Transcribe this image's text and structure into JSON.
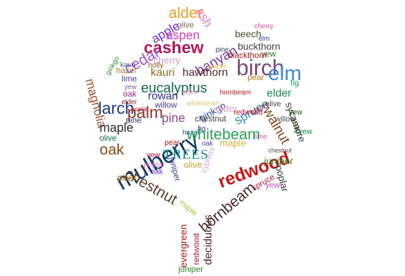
{
  "words": [
    {
      "text": "alder",
      "color": "#e8a024"
    },
    {
      "text": "ash",
      "color": "#e87ab4"
    },
    {
      "text": "apple",
      "color": "#6a2fd0"
    },
    {
      "text": "olive",
      "color": "#7a6a4a"
    },
    {
      "text": "aspen",
      "color": "#d43cc8"
    },
    {
      "text": "cherry",
      "color": "#d84fa0"
    },
    {
      "text": "beech",
      "color": "#4a4a2a"
    },
    {
      "text": "elm",
      "color": "#3a3aa0"
    },
    {
      "text": "cashew",
      "color": "#b01858"
    },
    {
      "text": "banyan",
      "color": "#6a3aa0"
    },
    {
      "text": "buckthorn",
      "color": "#4a3a3a"
    },
    {
      "text": "cedar",
      "color": "#9b59d0"
    },
    {
      "text": "cherry",
      "color": "#c8a0c8"
    },
    {
      "text": "pine",
      "color": "#3a3a6a"
    },
    {
      "text": "yew",
      "color": "#2a6a2a"
    },
    {
      "text": "blackthorn",
      "color": "#a01818"
    },
    {
      "text": "ginkgo",
      "color": "#2a8a2a"
    },
    {
      "text": "kauri",
      "color": "#4a4a8a"
    },
    {
      "text": "hazel",
      "color": "#a07a2a"
    },
    {
      "text": "juniper",
      "color": "#e8c038"
    },
    {
      "text": "holly",
      "color": "#8a5a2a"
    },
    {
      "text": "birch",
      "color": "#7a4a7a"
    },
    {
      "text": "elm",
      "color": "#3a8ad0"
    },
    {
      "text": "kauri",
      "color": "#8a6a1a"
    },
    {
      "text": "hawthorn",
      "color": "#4a2a2a"
    },
    {
      "text": "lime",
      "color": "#4a3aa0"
    },
    {
      "text": "pear",
      "color": "#b8781a"
    },
    {
      "text": "eucalyptus",
      "color": "#0f6a4a"
    },
    {
      "text": "fig",
      "color": "#2aa05a"
    },
    {
      "text": "magnolia",
      "color": "#a0522d"
    },
    {
      "text": "yew",
      "color": "#6a6ab0"
    },
    {
      "text": "oak",
      "color": "#8a2a7a"
    },
    {
      "text": "rowan",
      "color": "#2a2a8a"
    },
    {
      "text": "palm",
      "color": "#e8a0c8"
    },
    {
      "text": "hornbeam",
      "color": "#b01818"
    },
    {
      "text": "elder",
      "color": "#1a8a4a"
    },
    {
      "text": "larch",
      "color": "#1a3a8a"
    },
    {
      "text": "elder",
      "color": "#8a1a1a"
    },
    {
      "text": "willow",
      "color": "#4a3a8a"
    },
    {
      "text": "whitebeam",
      "color": "#d8c880"
    },
    {
      "text": "ginkgo",
      "color": "#2a4aa0"
    },
    {
      "text": "spruce",
      "color": "#2a8ac8"
    },
    {
      "text": "cherry",
      "color": "#a01818"
    },
    {
      "text": "olive",
      "color": "#4a4a4a"
    },
    {
      "text": "sycamore",
      "color": "#3a3a3a"
    },
    {
      "text": "palm",
      "color": "#8a3a2a"
    },
    {
      "text": "poplar",
      "color": "#b01838"
    },
    {
      "text": "elder",
      "color": "#e8a0c8"
    },
    {
      "text": "yew",
      "color": "#1a4a1a"
    },
    {
      "text": "pine",
      "color": "#8a4a8a"
    },
    {
      "text": "chestnut",
      "color": "#3a3a3a"
    },
    {
      "text": "redwood",
      "color": "#b01838"
    },
    {
      "text": "walnut",
      "color": "#8a4a1a"
    },
    {
      "text": "willow",
      "color": "#4a4a4a"
    },
    {
      "text": "holly",
      "color": "#3a3a1a"
    },
    {
      "text": "pine",
      "color": "#3a3a6a"
    },
    {
      "text": "olive",
      "color": "#0f6a4a"
    },
    {
      "text": "maple",
      "color": "#2a2a2a"
    },
    {
      "text": "fig",
      "color": "#3a3a8a"
    },
    {
      "text": "lime",
      "color": "#d84fa0"
    },
    {
      "text": "hazel",
      "color": "#2a4aa0"
    },
    {
      "text": "yew",
      "color": "#1a8a4a"
    },
    {
      "text": "mulberry",
      "color": "#0f3a6a"
    },
    {
      "text": "whitebeam",
      "color": "#2aa05a"
    },
    {
      "text": "pear",
      "color": "#b01818"
    },
    {
      "text": "oak",
      "color": "#4a3aa0"
    },
    {
      "text": "maple",
      "color": "#d8b040"
    },
    {
      "text": "chestnut",
      "color": "#4a4a4a"
    },
    {
      "text": "oak",
      "color": "#8a4a1a"
    },
    {
      "text": "TREES",
      "color": "#1a8a8a"
    },
    {
      "text": "redwood",
      "color": "#c81818"
    },
    {
      "text": "juniper",
      "color": "#2a8a2a"
    },
    {
      "text": "poplar",
      "color": "#3a3a3a"
    },
    {
      "text": "yew",
      "color": "#b01838"
    },
    {
      "text": "juniper",
      "color": "#3a3a8a"
    },
    {
      "text": "olive",
      "color": "#c8a040"
    },
    {
      "text": "poplar",
      "color": "#e87ab4"
    },
    {
      "text": "oak",
      "color": "#6a2fd0"
    },
    {
      "text": "chestnut",
      "color": "#5a3a2a"
    },
    {
      "text": "cypress",
      "color": "#d8a0d8"
    },
    {
      "text": "pear",
      "color": "#b8781a"
    },
    {
      "text": "spruce",
      "color": "#b01838"
    },
    {
      "text": "yew",
      "color": "#c84ac8"
    },
    {
      "text": "hornbeam",
      "color": "#4a2a2a"
    },
    {
      "text": "maple",
      "color": "#a0c848"
    },
    {
      "text": "evergreen",
      "color": "#a01818"
    },
    {
      "text": "redwood",
      "color": "#b01838"
    },
    {
      "text": "deciduous",
      "color": "#4a2a2a"
    },
    {
      "text": "juniper",
      "color": "#2a8a2a"
    }
  ]
}
